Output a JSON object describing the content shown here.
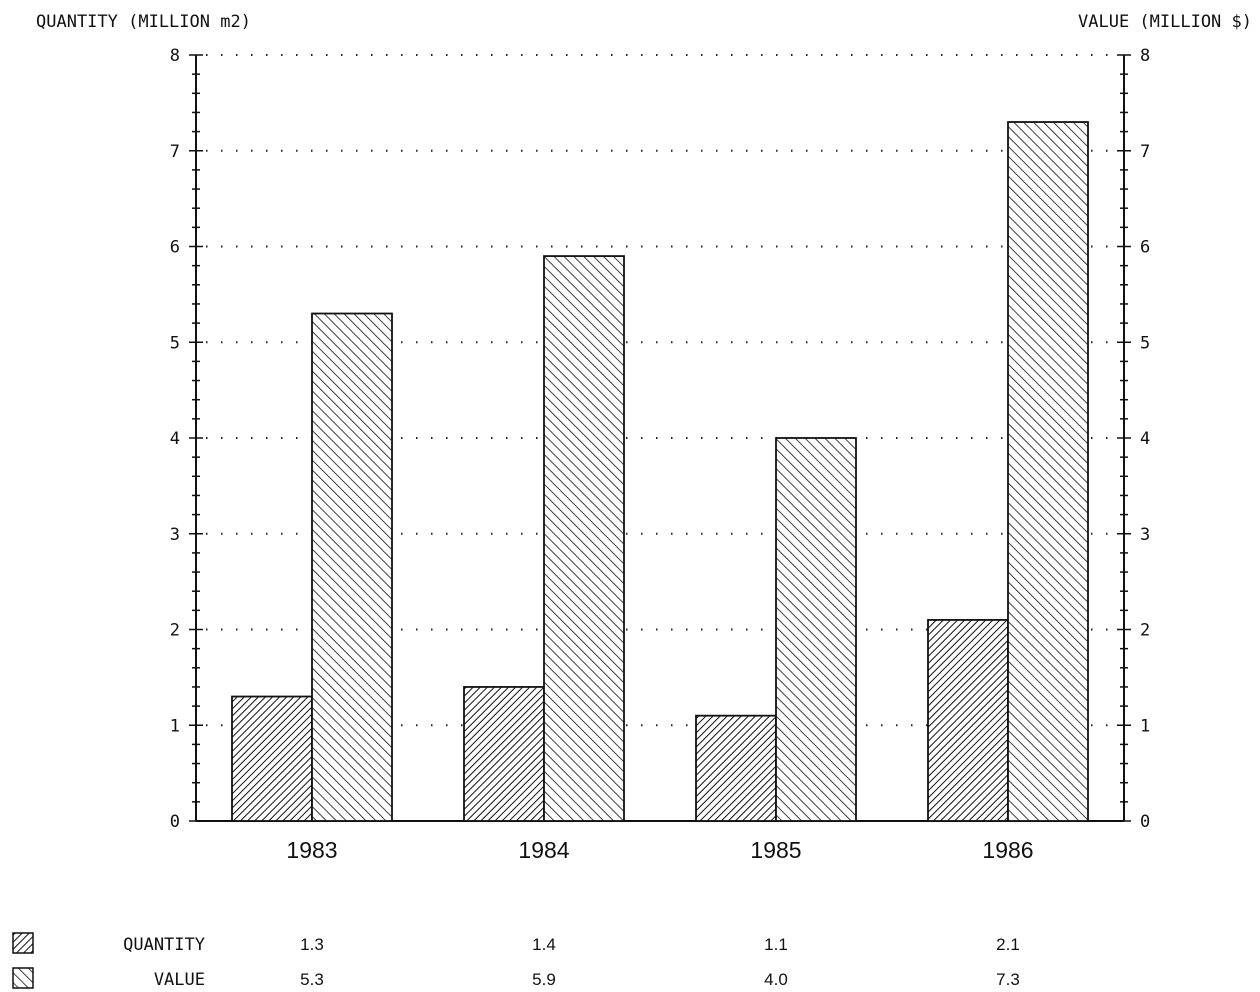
{
  "chart_data": {
    "type": "bar",
    "ylabel": "QUANTITY (MILLION m2)",
    "y2label": "VALUE (MILLION $)",
    "ylim": [
      0,
      8
    ],
    "y2lim": [
      0,
      8
    ],
    "yticks": [
      "0",
      "1",
      "2",
      "3",
      "4",
      "5",
      "6",
      "7",
      "8"
    ],
    "grid": "dotted",
    "categories": [
      "1983",
      "1984",
      "1985",
      "1986"
    ],
    "series": [
      {
        "name": "QUANTITY",
        "axis": "left",
        "pattern": "dense-diagonal",
        "values": [
          1.3,
          1.4,
          1.1,
          2.1
        ]
      },
      {
        "name": "VALUE",
        "axis": "right",
        "pattern": "backslash-diagonal",
        "values": [
          5.3,
          5.9,
          4.0,
          7.3
        ]
      }
    ],
    "table": {
      "rows": [
        {
          "label": "QUANTITY",
          "values": [
            "1.3",
            "1.4",
            "1.1",
            "2.1"
          ]
        },
        {
          "label": "VALUE",
          "values": [
            "5.3",
            "5.9",
            "4.0",
            "7.3"
          ]
        }
      ]
    }
  }
}
